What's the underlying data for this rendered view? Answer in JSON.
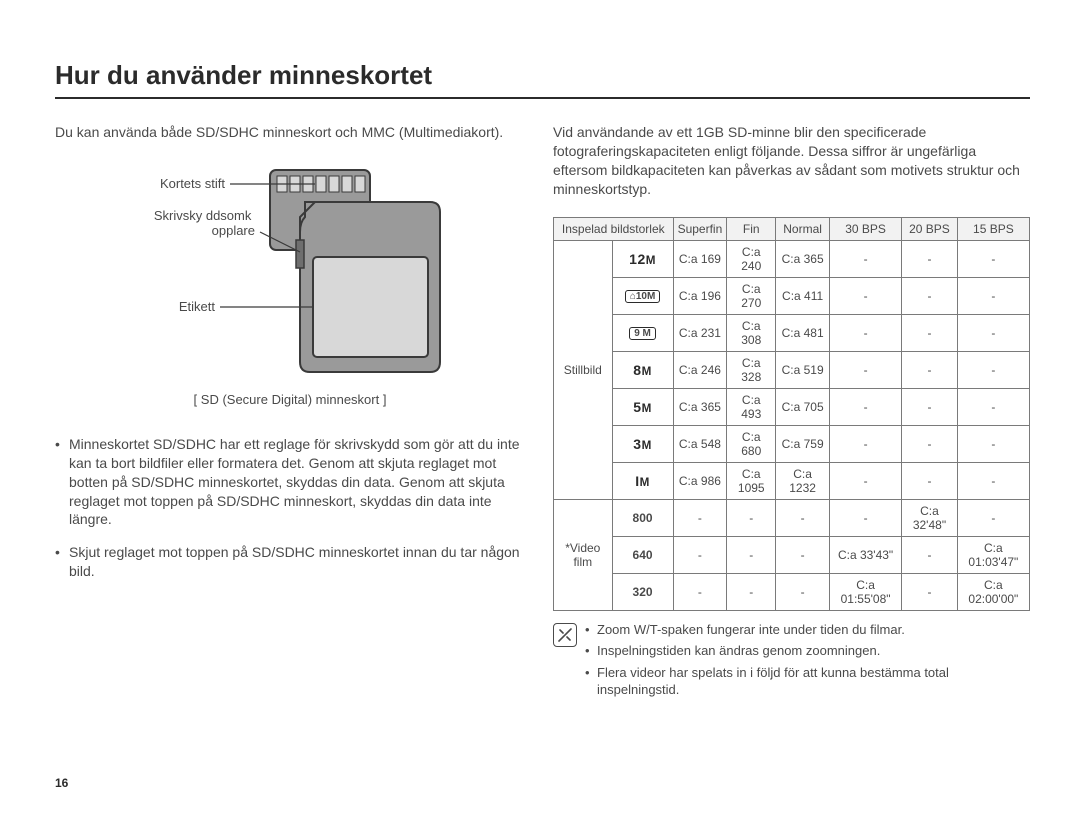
{
  "page_number": "16",
  "title": "Hur du använder minneskortet",
  "left": {
    "intro": "Du kan använda både SD/SDHC minneskort och MMC (Multimediakort).",
    "labels": {
      "pins": "Kortets stift",
      "lock": "Skrivsky ddsomk opplare",
      "label_area": "Etikett"
    },
    "caption": "[ SD (Secure Digital) minneskort ]",
    "bullets": [
      "Minneskortet SD/SDHC har ett reglage för skrivskydd som gör att du inte kan ta bort bildfiler eller formatera det. Genom att skjuta reglaget mot botten på SD/SDHC minneskortet, skyddas din data. Genom att skjuta reglaget mot toppen på SD/SDHC minneskort, skyddas din data inte längre.",
      "Skjut reglaget mot toppen på SD/SDHC minneskortet innan du tar någon bild."
    ]
  },
  "right": {
    "intro": "Vid användande av ett 1GB SD-minne blir den specificerade fotograferingskapaciteten enligt följande. Dessa siffror är ungefärliga eftersom bildkapaciteten kan påverkas av sådant som motivets struktur och minneskortstyp.",
    "table": {
      "headers": [
        "Inspelad bildstorlek",
        "Superfin",
        "Fin",
        "Normal",
        "30 BPS",
        "20 BPS",
        "15 BPS"
      ],
      "still_label": "Stillbild",
      "video_label": "*Video film",
      "still_rows": [
        {
          "size_html": "<span class='m-label'>12<small>M</small></span>",
          "cells": [
            "C:a 169",
            "C:a 240",
            "C:a 365",
            "-",
            "-",
            "-"
          ]
        },
        {
          "size_html": "<span class='boxed'>⌂10M</span>",
          "cells": [
            "C:a 196",
            "C:a 270",
            "C:a 411",
            "-",
            "-",
            "-"
          ]
        },
        {
          "size_html": "<span class='boxed'>9 M</span>",
          "cells": [
            "C:a 231",
            "C:a 308",
            "C:a 481",
            "-",
            "-",
            "-"
          ]
        },
        {
          "size_html": "<span class='m-label'>8<small>M</small></span>",
          "cells": [
            "C:a 246",
            "C:a 328",
            "C:a 519",
            "-",
            "-",
            "-"
          ]
        },
        {
          "size_html": "<span class='m-label'>5<small>M</small></span>",
          "cells": [
            "C:a 365",
            "C:a 493",
            "C:a 705",
            "-",
            "-",
            "-"
          ]
        },
        {
          "size_html": "<span class='m-label'>3<small>M</small></span>",
          "cells": [
            "C:a 548",
            "C:a 680",
            "C:a 759",
            "-",
            "-",
            "-"
          ]
        },
        {
          "size_html": "<span class='m-label'>I<small>M</small></span>",
          "cells": [
            "C:a 986",
            "C:a 1095",
            "C:a 1232",
            "-",
            "-",
            "-"
          ]
        }
      ],
      "video_rows": [
        {
          "size_html": "<b>800</b>",
          "cells": [
            "-",
            "-",
            "-",
            "-",
            "C:a 32'48\"",
            "-"
          ]
        },
        {
          "size_html": "<b>640</b>",
          "cells": [
            "-",
            "-",
            "-",
            "C:a 33'43\"",
            "-",
            "C:a 01:03'47\""
          ]
        },
        {
          "size_html": "<b>320</b>",
          "cells": [
            "-",
            "-",
            "-",
            "C:a 01:55'08\"",
            "-",
            "C:a 02:00'00\""
          ]
        }
      ]
    },
    "notes": [
      "Zoom W/T-spaken fungerar inte under tiden du filmar.",
      "Inspelningstiden kan ändras genom zoomningen.",
      "Flera videor har spelats in i följd för att kunna bestämma total inspelningstid."
    ]
  },
  "colors": {
    "text": "#4a4a4a",
    "heading": "#2b2b2b",
    "table_border": "#7a7a7a",
    "table_head_bg": "#f2f2f2",
    "card_fill": "#9a9a9a",
    "card_stroke": "#3a3a3a",
    "card_label_fill": "#d8d8d8"
  }
}
